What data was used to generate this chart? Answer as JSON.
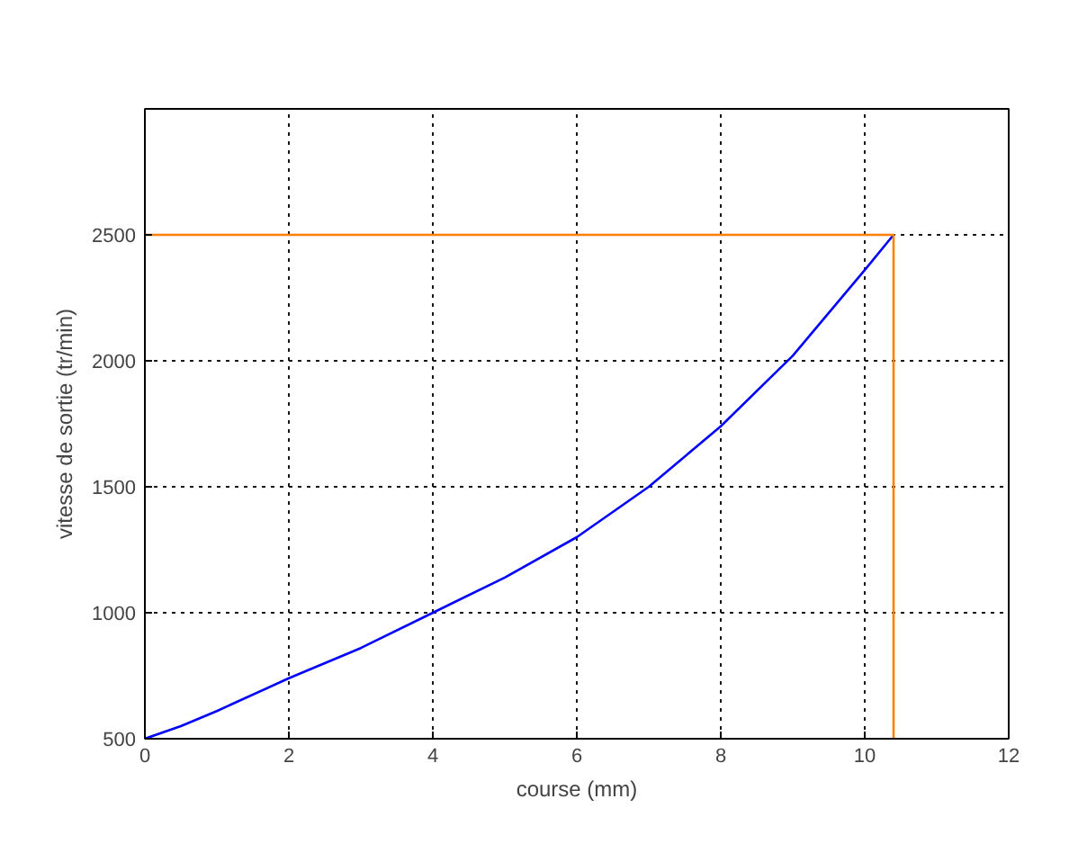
{
  "chart_data": {
    "type": "line",
    "xlabel": "course (mm)",
    "ylabel": "vitesse de sortie (tr/min)",
    "xlim": [
      0,
      12
    ],
    "xticks": [
      0,
      2,
      4,
      6,
      8,
      10,
      12
    ],
    "ylim": [
      500,
      3000
    ],
    "yticks": [
      500,
      1000,
      1500,
      2000,
      2500,
      {
        "value": 3000,
        "label": null
      }
    ],
    "grid": true,
    "marker": "none",
    "line_style": "solid",
    "series": [
      {
        "color": "#0000ff",
        "x": [
          0,
          0.5,
          1,
          2,
          3,
          4,
          5,
          6,
          7,
          8,
          9,
          10,
          10.4
        ],
        "values": [
          500,
          550,
          610,
          740,
          860,
          1000,
          1140,
          1300,
          1500,
          1740,
          2020,
          2360,
          2500
        ]
      },
      {
        "color": "#ff8000",
        "x": [
          0,
          10.4,
          10.4
        ],
        "values": [
          2500,
          2500,
          500
        ]
      }
    ]
  }
}
